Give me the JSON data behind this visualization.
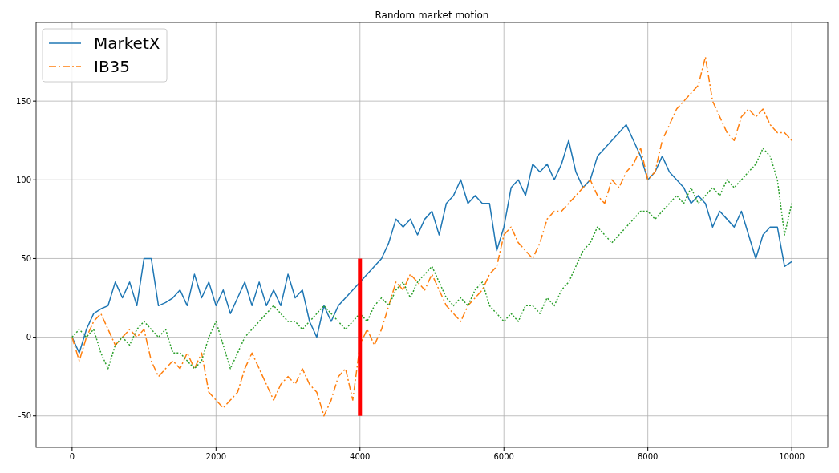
{
  "chart_data": {
    "type": "line",
    "title": "Random market motion",
    "xlim": [
      -500,
      10500
    ],
    "ylim": [
      -70,
      200
    ],
    "xticks": [
      0,
      2000,
      4000,
      6000,
      8000,
      10000
    ],
    "yticks": [
      -50,
      0,
      50,
      100,
      150
    ],
    "grid": true,
    "legend": "top left",
    "x": [
      0,
      100,
      200,
      300,
      400,
      500,
      600,
      700,
      800,
      900,
      1000,
      1100,
      1200,
      1300,
      1400,
      1500,
      1600,
      1700,
      1800,
      1900,
      2000,
      2100,
      2200,
      2300,
      2400,
      2500,
      2600,
      2700,
      2800,
      2900,
      3000,
      3100,
      3200,
      3300,
      3400,
      3500,
      3600,
      3700,
      3800,
      3900,
      4000,
      4100,
      4200,
      4300,
      4400,
      4500,
      4600,
      4700,
      4800,
      4900,
      5000,
      5100,
      5200,
      5300,
      5400,
      5500,
      5600,
      5700,
      5800,
      5900,
      6000,
      6100,
      6200,
      6300,
      6400,
      6500,
      6600,
      6700,
      6800,
      6900,
      7000,
      7100,
      7200,
      7300,
      7400,
      7500,
      7600,
      7700,
      7800,
      7900,
      8000,
      8100,
      8200,
      8300,
      8400,
      8500,
      8600,
      8700,
      8800,
      8900,
      9000,
      9100,
      9200,
      9300,
      9400,
      9500,
      9600,
      9700,
      9800,
      9900,
      10000
    ],
    "series": [
      {
        "name": "MarketX",
        "color": "#1f77b4",
        "line_style": "solid",
        "values": [
          0,
          -10,
          5,
          15,
          18,
          20,
          35,
          25,
          35,
          20,
          50,
          50,
          20,
          22,
          25,
          30,
          20,
          40,
          25,
          35,
          20,
          30,
          15,
          25,
          35,
          20,
          35,
          20,
          30,
          20,
          40,
          25,
          30,
          10,
          0,
          20,
          10,
          20,
          25,
          30,
          35,
          40,
          45,
          50,
          60,
          75,
          70,
          75,
          65,
          75,
          80,
          65,
          85,
          90,
          100,
          85,
          90,
          85,
          85,
          55,
          70,
          95,
          100,
          90,
          110,
          105,
          110,
          100,
          110,
          125,
          105,
          95,
          100,
          115,
          120,
          125,
          130,
          135,
          125,
          115,
          100,
          105,
          115,
          105,
          100,
          95,
          85,
          90,
          85,
          70,
          80,
          75,
          70,
          80,
          65,
          50,
          65,
          70,
          70,
          45,
          48
        ]
      },
      {
        "name": "IB35",
        "color": "#ff7f0e",
        "line_style": "dashed",
        "values": [
          0,
          -15,
          0,
          10,
          15,
          5,
          -5,
          0,
          5,
          0,
          5,
          -15,
          -25,
          -20,
          -15,
          -20,
          -10,
          -20,
          -10,
          -35,
          -40,
          -45,
          -40,
          -35,
          -20,
          -10,
          -20,
          -30,
          -40,
          -30,
          -25,
          -30,
          -20,
          -30,
          -35,
          -50,
          -40,
          -25,
          -20,
          -40,
          -5,
          5,
          -5,
          5,
          20,
          35,
          30,
          40,
          35,
          30,
          40,
          30,
          20,
          15,
          10,
          20,
          25,
          30,
          40,
          45,
          65,
          70,
          60,
          55,
          50,
          60,
          75,
          80,
          80,
          85,
          90,
          95,
          100,
          90,
          85,
          100,
          95,
          105,
          110,
          120,
          100,
          105,
          125,
          135,
          145,
          150,
          155,
          160,
          178,
          150,
          140,
          130,
          125,
          140,
          145,
          140,
          145,
          135,
          130,
          130,
          125
        ]
      },
      {
        "color": "#2ca02c",
        "line_style": "dotted",
        "values": [
          0,
          5,
          0,
          5,
          -10,
          -20,
          -5,
          0,
          -5,
          5,
          10,
          5,
          0,
          5,
          -10,
          -10,
          -15,
          -20,
          -15,
          0,
          10,
          -5,
          -20,
          -10,
          0,
          5,
          10,
          15,
          20,
          15,
          10,
          10,
          5,
          10,
          15,
          20,
          15,
          10,
          5,
          10,
          15,
          10,
          20,
          25,
          20,
          30,
          35,
          25,
          35,
          40,
          45,
          35,
          25,
          20,
          25,
          20,
          30,
          35,
          20,
          15,
          10,
          15,
          10,
          20,
          20,
          15,
          25,
          20,
          30,
          35,
          45,
          55,
          60,
          70,
          65,
          60,
          65,
          70,
          75,
          80,
          80,
          75,
          80,
          85,
          90,
          85,
          95,
          85,
          90,
          95,
          90,
          100,
          95,
          100,
          105,
          110,
          120,
          115,
          100,
          65,
          85
        ]
      },
      {
        "color": "#ff0000",
        "x": [
          4000,
          4000
        ],
        "values": [
          -50,
          50
        ]
      }
    ]
  }
}
